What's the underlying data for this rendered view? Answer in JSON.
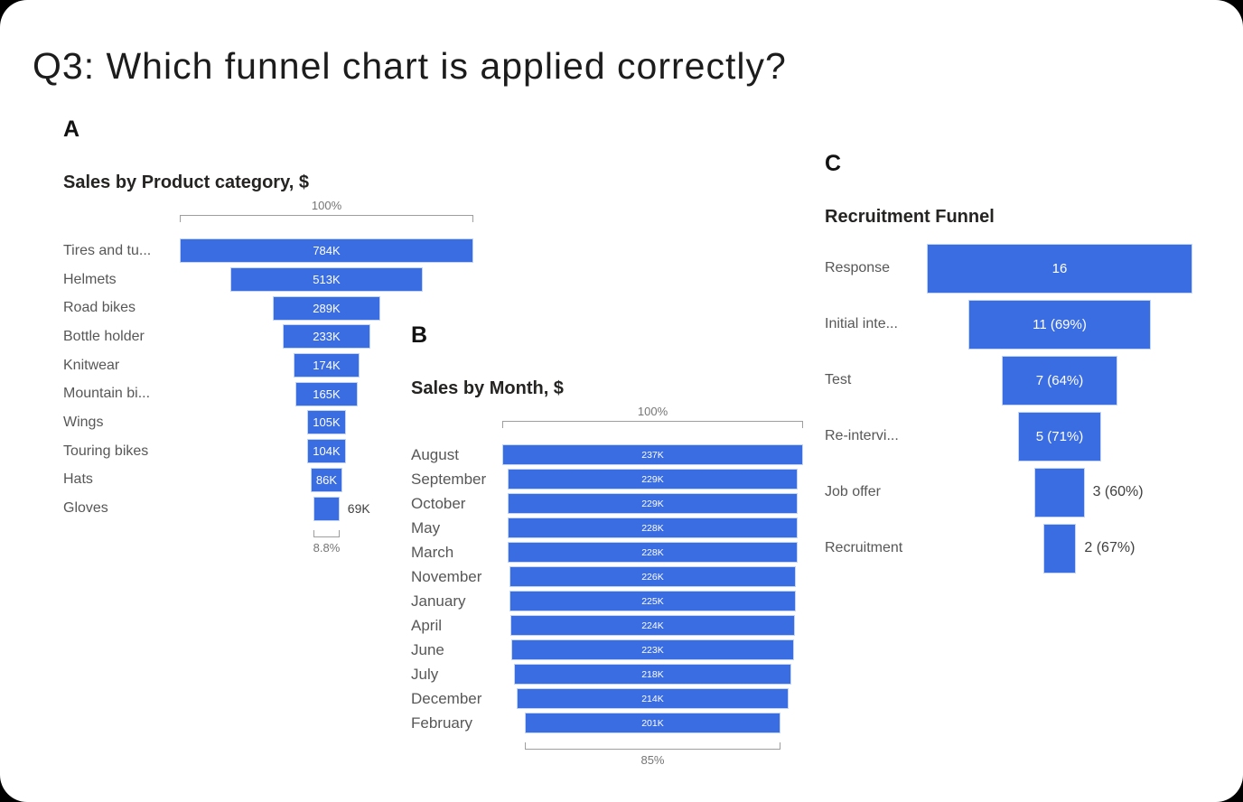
{
  "page": {
    "title": "Q3: Which funnel chart is applied correctly?"
  },
  "colors": {
    "bar_blue": "#3B6DE2",
    "bar_border": "#c3d5f5",
    "title_text": "#252423",
    "category_gray": "#575757",
    "percent_gray": "#757575",
    "outside_value_gray": "#3f3f3f"
  },
  "chart_data": [
    {
      "type": "funnel",
      "panel_label": "A",
      "title": "Sales by Product category, $",
      "top_label": "100%",
      "bottom_label": "8.8%",
      "categories": [
        "Tires and tu...",
        "Helmets",
        "Road bikes",
        "Bottle holder",
        "Knitwear",
        "Mountain bi...",
        "Wings",
        "Touring bikes",
        "Hats",
        "Gloves"
      ],
      "values": [
        784000,
        513000,
        289000,
        233000,
        174000,
        165000,
        105000,
        104000,
        86000,
        69000
      ],
      "value_labels": [
        "784K",
        "513K",
        "289K",
        "233K",
        "174K",
        "165K",
        "105K",
        "104K",
        "86K",
        "69K"
      ]
    },
    {
      "type": "funnel",
      "panel_label": "B",
      "title": "Sales by Month, $",
      "top_label": "100%",
      "bottom_label": "85%",
      "categories": [
        "August",
        "September",
        "October",
        "May",
        "March",
        "November",
        "January",
        "April",
        "June",
        "July",
        "December",
        "February"
      ],
      "values": [
        237000,
        229000,
        229000,
        228000,
        228000,
        226000,
        225000,
        224000,
        223000,
        218000,
        214000,
        201000
      ],
      "value_labels": [
        "237K",
        "229K",
        "229K",
        "228K",
        "228K",
        "226K",
        "225K",
        "224K",
        "223K",
        "218K",
        "214K",
        "201K"
      ]
    },
    {
      "type": "funnel",
      "panel_label": "C",
      "title": "Recruitment Funnel",
      "top_label": null,
      "bottom_label": null,
      "categories": [
        "Response",
        "Initial inte...",
        "Test",
        "Re-intervi...",
        "Job offer",
        "Recruitment"
      ],
      "values": [
        16,
        11,
        7,
        5,
        3,
        2
      ],
      "value_labels": [
        "16",
        "11 (69%)",
        "7 (64%)",
        "5 (71%)",
        "3 (60%)",
        "2 (67%)"
      ]
    }
  ]
}
